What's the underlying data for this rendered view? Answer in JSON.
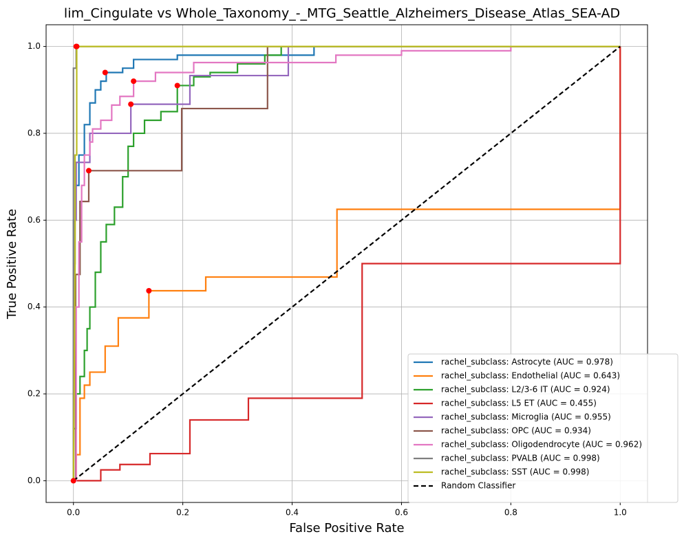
{
  "chart_data": {
    "type": "line",
    "title": "lim_Cingulate vs Whole_Taxonomy_-_MTG_Seattle_Alzheimers_Disease_Atlas_SEA-AD",
    "x_label": "False Positive Rate",
    "y_label": "True Positive Rate",
    "xlim": [
      -0.05,
      1.05
    ],
    "ylim": [
      -0.05,
      1.05
    ],
    "xticks": [
      {
        "value": 0,
        "label": "0.0"
      },
      0.2,
      0.4,
      0.6,
      0.8,
      {
        "value": 1,
        "label": "1.0"
      }
    ],
    "yticks": [
      {
        "value": 0,
        "label": "0.0"
      },
      0.2,
      0.4,
      0.6,
      0.8,
      {
        "value": 1,
        "label": "1.0"
      }
    ],
    "grid": true,
    "legend": "lower right",
    "point_color": "#ff0000",
    "series": [
      {
        "name": "rachel_subclass: Astrocyte (AUC = 0.978)",
        "color": "#1f77b4",
        "x": [
          0,
          0,
          0.003,
          0.003,
          0.01,
          0.01,
          0.02,
          0.02,
          0.03,
          0.03,
          0.04,
          0.04,
          0.05,
          0.05,
          0.06,
          0.06,
          0.09,
          0.09,
          0.11,
          0.11,
          0.19,
          0.19,
          0.44,
          0.44,
          1.0
        ],
        "values": [
          0,
          0.6,
          0.6,
          0.68,
          0.68,
          0.75,
          0.75,
          0.82,
          0.82,
          0.87,
          0.87,
          0.9,
          0.9,
          0.92,
          0.92,
          0.94,
          0.94,
          0.95,
          0.95,
          0.97,
          0.97,
          0.98,
          0.98,
          1.0,
          1.0
        ],
        "optimal_point": {
          "x": 0.058,
          "y": 0.94
        }
      },
      {
        "name": "rachel_subclass: Endothelial (AUC = 0.643)",
        "color": "#ff7f0e",
        "x": [
          0,
          0.005,
          0.005,
          0.012,
          0.012,
          0.02,
          0.02,
          0.03,
          0.03,
          0.058,
          0.058,
          0.082,
          0.082,
          0.138,
          0.138,
          0.242,
          0.242,
          0.482,
          0.482,
          1.0,
          1.0
        ],
        "values": [
          0,
          0,
          0.06,
          0.06,
          0.19,
          0.19,
          0.22,
          0.22,
          0.25,
          0.25,
          0.31,
          0.31,
          0.375,
          0.375,
          0.4375,
          0.4375,
          0.469,
          0.469,
          0.625,
          0.625,
          1.0
        ],
        "optimal_point": {
          "x": 0.138,
          "y": 0.4375
        }
      },
      {
        "name": "rachel_subclass: L2/3-6 IT (AUC = 0.924)",
        "color": "#2ca02c",
        "x": [
          0,
          0,
          0.005,
          0.005,
          0.012,
          0.012,
          0.02,
          0.02,
          0.025,
          0.025,
          0.03,
          0.03,
          0.04,
          0.04,
          0.05,
          0.05,
          0.06,
          0.06,
          0.075,
          0.075,
          0.09,
          0.09,
          0.1,
          0.1,
          0.11,
          0.11,
          0.13,
          0.13,
          0.16,
          0.16,
          0.19,
          0.19,
          0.22,
          0.22,
          0.25,
          0.25,
          0.3,
          0.3,
          0.35,
          0.35,
          0.38,
          0.38,
          1.0
        ],
        "values": [
          0,
          0.12,
          0.12,
          0.2,
          0.2,
          0.24,
          0.24,
          0.3,
          0.3,
          0.35,
          0.35,
          0.4,
          0.4,
          0.48,
          0.48,
          0.55,
          0.55,
          0.59,
          0.59,
          0.63,
          0.63,
          0.7,
          0.7,
          0.77,
          0.77,
          0.8,
          0.8,
          0.83,
          0.83,
          0.85,
          0.85,
          0.91,
          0.91,
          0.93,
          0.93,
          0.94,
          0.94,
          0.96,
          0.96,
          0.98,
          0.98,
          1.0,
          1.0
        ],
        "optimal_point": {
          "x": 0.19,
          "y": 0.91
        }
      },
      {
        "name": "rachel_subclass: L5 ET (AUC = 0.455)",
        "color": "#d62728",
        "x": [
          0,
          0.05,
          0.05,
          0.085,
          0.085,
          0.14,
          0.14,
          0.213,
          0.213,
          0.32,
          0.32,
          0.528,
          0.528,
          1.0,
          1.0
        ],
        "values": [
          0,
          0,
          0.025,
          0.025,
          0.0375,
          0.0375,
          0.0625,
          0.0625,
          0.14,
          0.14,
          0.19,
          0.19,
          0.5,
          0.5,
          1.0
        ],
        "optimal_point": {
          "x": 0,
          "y": 0
        }
      },
      {
        "name": "rachel_subclass: Microglia (AUC = 0.955)",
        "color": "#9467bd",
        "x": [
          0,
          0,
          0.003,
          0.003,
          0.005,
          0.005,
          0.03,
          0.03,
          0.105,
          0.105,
          0.213,
          0.213,
          0.393,
          0.393,
          1.0
        ],
        "values": [
          0,
          0.5,
          0.5,
          0.6,
          0.6,
          0.733,
          0.733,
          0.8,
          0.8,
          0.867,
          0.867,
          0.933,
          0.933,
          1.0,
          1.0
        ],
        "optimal_point": {
          "x": 0.105,
          "y": 0.867
        }
      },
      {
        "name": "rachel_subclass: OPC (AUC = 0.934)",
        "color": "#8c564b",
        "x": [
          0,
          0.004,
          0.004,
          0.012,
          0.012,
          0.028,
          0.028,
          0.198,
          0.198,
          0.355,
          0.355,
          1.0
        ],
        "values": [
          0,
          0,
          0.475,
          0.475,
          0.643,
          0.643,
          0.714,
          0.714,
          0.857,
          0.857,
          1.0,
          1.0
        ],
        "optimal_point": {
          "x": 0.028,
          "y": 0.714
        }
      },
      {
        "name": "rachel_subclass: Oligodendrocyte (AUC = 0.962)",
        "color": "#e377c2",
        "x": [
          0,
          0.005,
          0.005,
          0.01,
          0.01,
          0.015,
          0.015,
          0.02,
          0.02,
          0.03,
          0.03,
          0.035,
          0.035,
          0.05,
          0.05,
          0.07,
          0.07,
          0.085,
          0.085,
          0.11,
          0.11,
          0.15,
          0.15,
          0.22,
          0.22,
          0.48,
          0.48,
          0.6,
          0.6,
          0.8,
          0.8,
          1.0
        ],
        "values": [
          0,
          0,
          0.4,
          0.4,
          0.55,
          0.55,
          0.68,
          0.68,
          0.75,
          0.75,
          0.78,
          0.78,
          0.81,
          0.81,
          0.83,
          0.83,
          0.865,
          0.865,
          0.885,
          0.885,
          0.92,
          0.92,
          0.94,
          0.94,
          0.963,
          0.963,
          0.98,
          0.98,
          0.99,
          0.99,
          1.0,
          1.0
        ],
        "optimal_point": {
          "x": 0.11,
          "y": 0.92
        }
      },
      {
        "name": "rachel_subclass: PVALB (AUC = 0.998)",
        "color": "#7f7f7f",
        "x": [
          0,
          0,
          0.005,
          0.005,
          1.0
        ],
        "values": [
          0,
          0.95,
          0.95,
          1.0,
          1.0
        ],
        "optimal_point": {
          "x": 0.005,
          "y": 1.0
        }
      },
      {
        "name": "rachel_subclass: SST (AUC = 0.998)",
        "color": "#bcbd22",
        "x": [
          0,
          0.003,
          0.003,
          0.006,
          0.006,
          1.0
        ],
        "values": [
          0,
          0.5,
          0.75,
          0.75,
          1.0,
          1.0
        ],
        "optimal_point": {
          "x": 0.006,
          "y": 1.0
        }
      },
      {
        "name": "Random Classifier",
        "color": "#000000",
        "dash": true,
        "x": [
          0,
          1
        ],
        "values": [
          0,
          1
        ]
      }
    ]
  }
}
